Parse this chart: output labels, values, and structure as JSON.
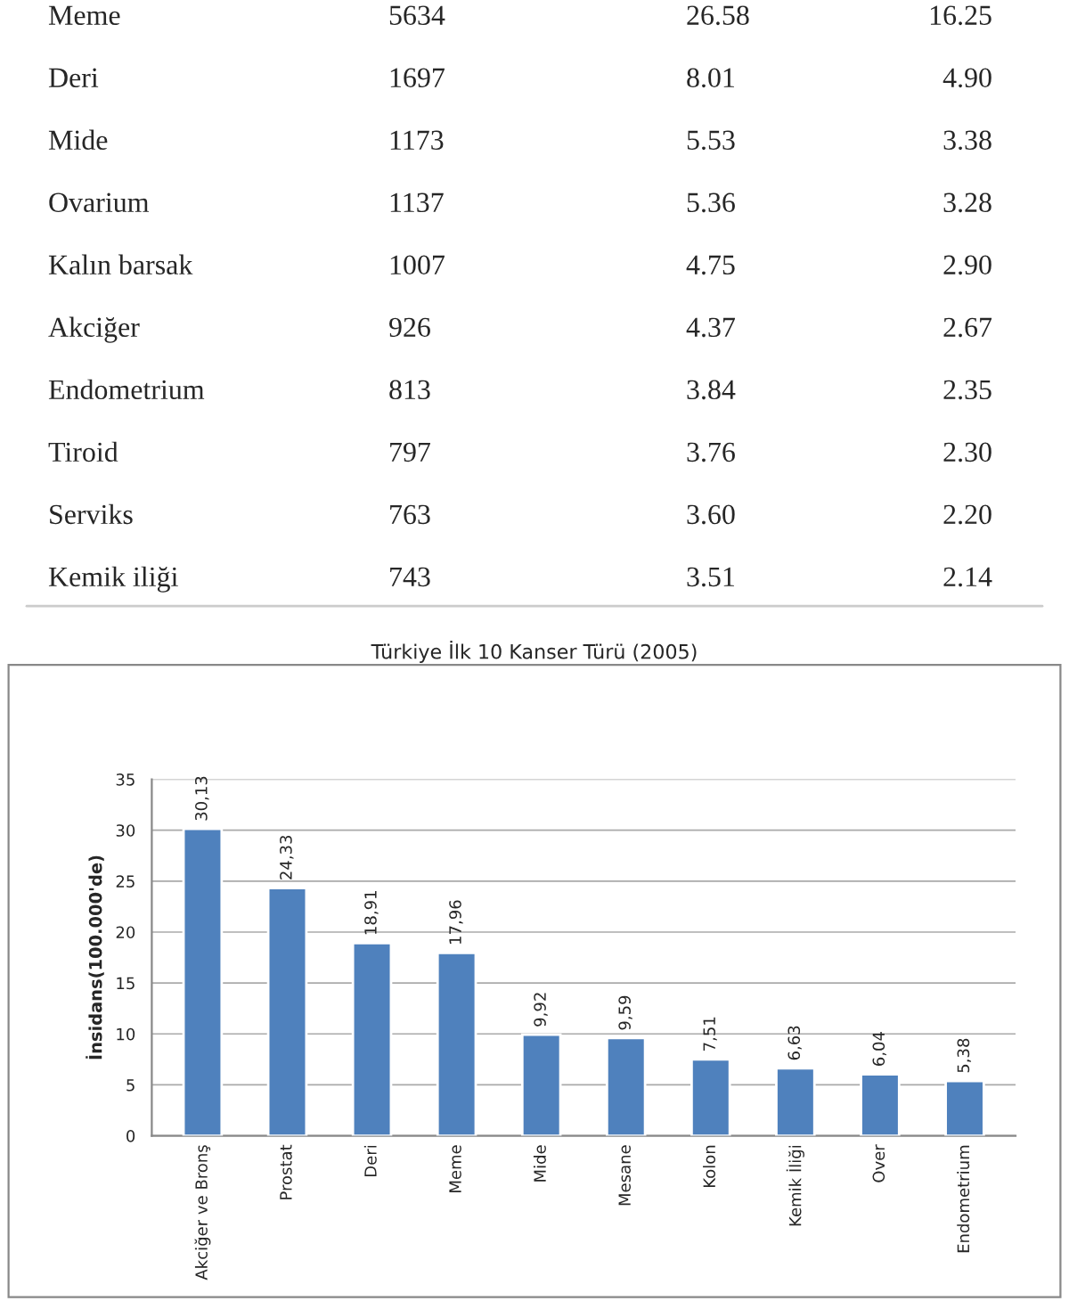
{
  "chart_data": [
    {
      "type": "other",
      "annotations": [
        "Meme",
        "5634",
        "26.58",
        "16.25",
        "Deri",
        "1697",
        "8.01",
        "4.90",
        "Mide",
        "1173",
        "5.53",
        "3.38",
        "Ovarium",
        "1137",
        "5.36",
        "3.28",
        "Kalın barsak",
        "1007",
        "4.75",
        "2.90",
        "Akciğer",
        "926",
        "4.37",
        "2.67",
        "Endometrium",
        "813",
        "3.84",
        "2.35",
        "Tiroid",
        "797",
        "3.76",
        "2.30",
        "Serviks",
        "763",
        "3.60",
        "2.20",
        "Kemik iliği",
        "743",
        "3.51",
        "2.14"
      ]
    },
    {
      "type": "bar",
      "title": "Türkiye İlk 10 Kanser Türü (2005)",
      "ylabel": "İnsidans(100.000'de)",
      "categories": [
        "Akciğer ve Bronş",
        "Prostat",
        "Deri",
        "Meme",
        "Mide",
        "Mesane",
        "Kolon",
        "Kemik İliği",
        "Over",
        "Endometrium"
      ],
      "values": [
        30.13,
        24.33,
        18.91,
        17.96,
        9.92,
        9.59,
        7.51,
        6.63,
        6.04,
        5.38
      ],
      "value_labels": [
        "30,13",
        "24,33",
        "18,91",
        "17,96",
        "9,92",
        "9,59",
        "7,51",
        "6,63",
        "6,04",
        "5,38"
      ],
      "color": "#4f81bd",
      "ylim": [
        0,
        35
      ],
      "yticks": [
        0,
        5,
        10,
        15,
        20,
        25,
        30,
        35
      ],
      "grid": "y"
    }
  ]
}
